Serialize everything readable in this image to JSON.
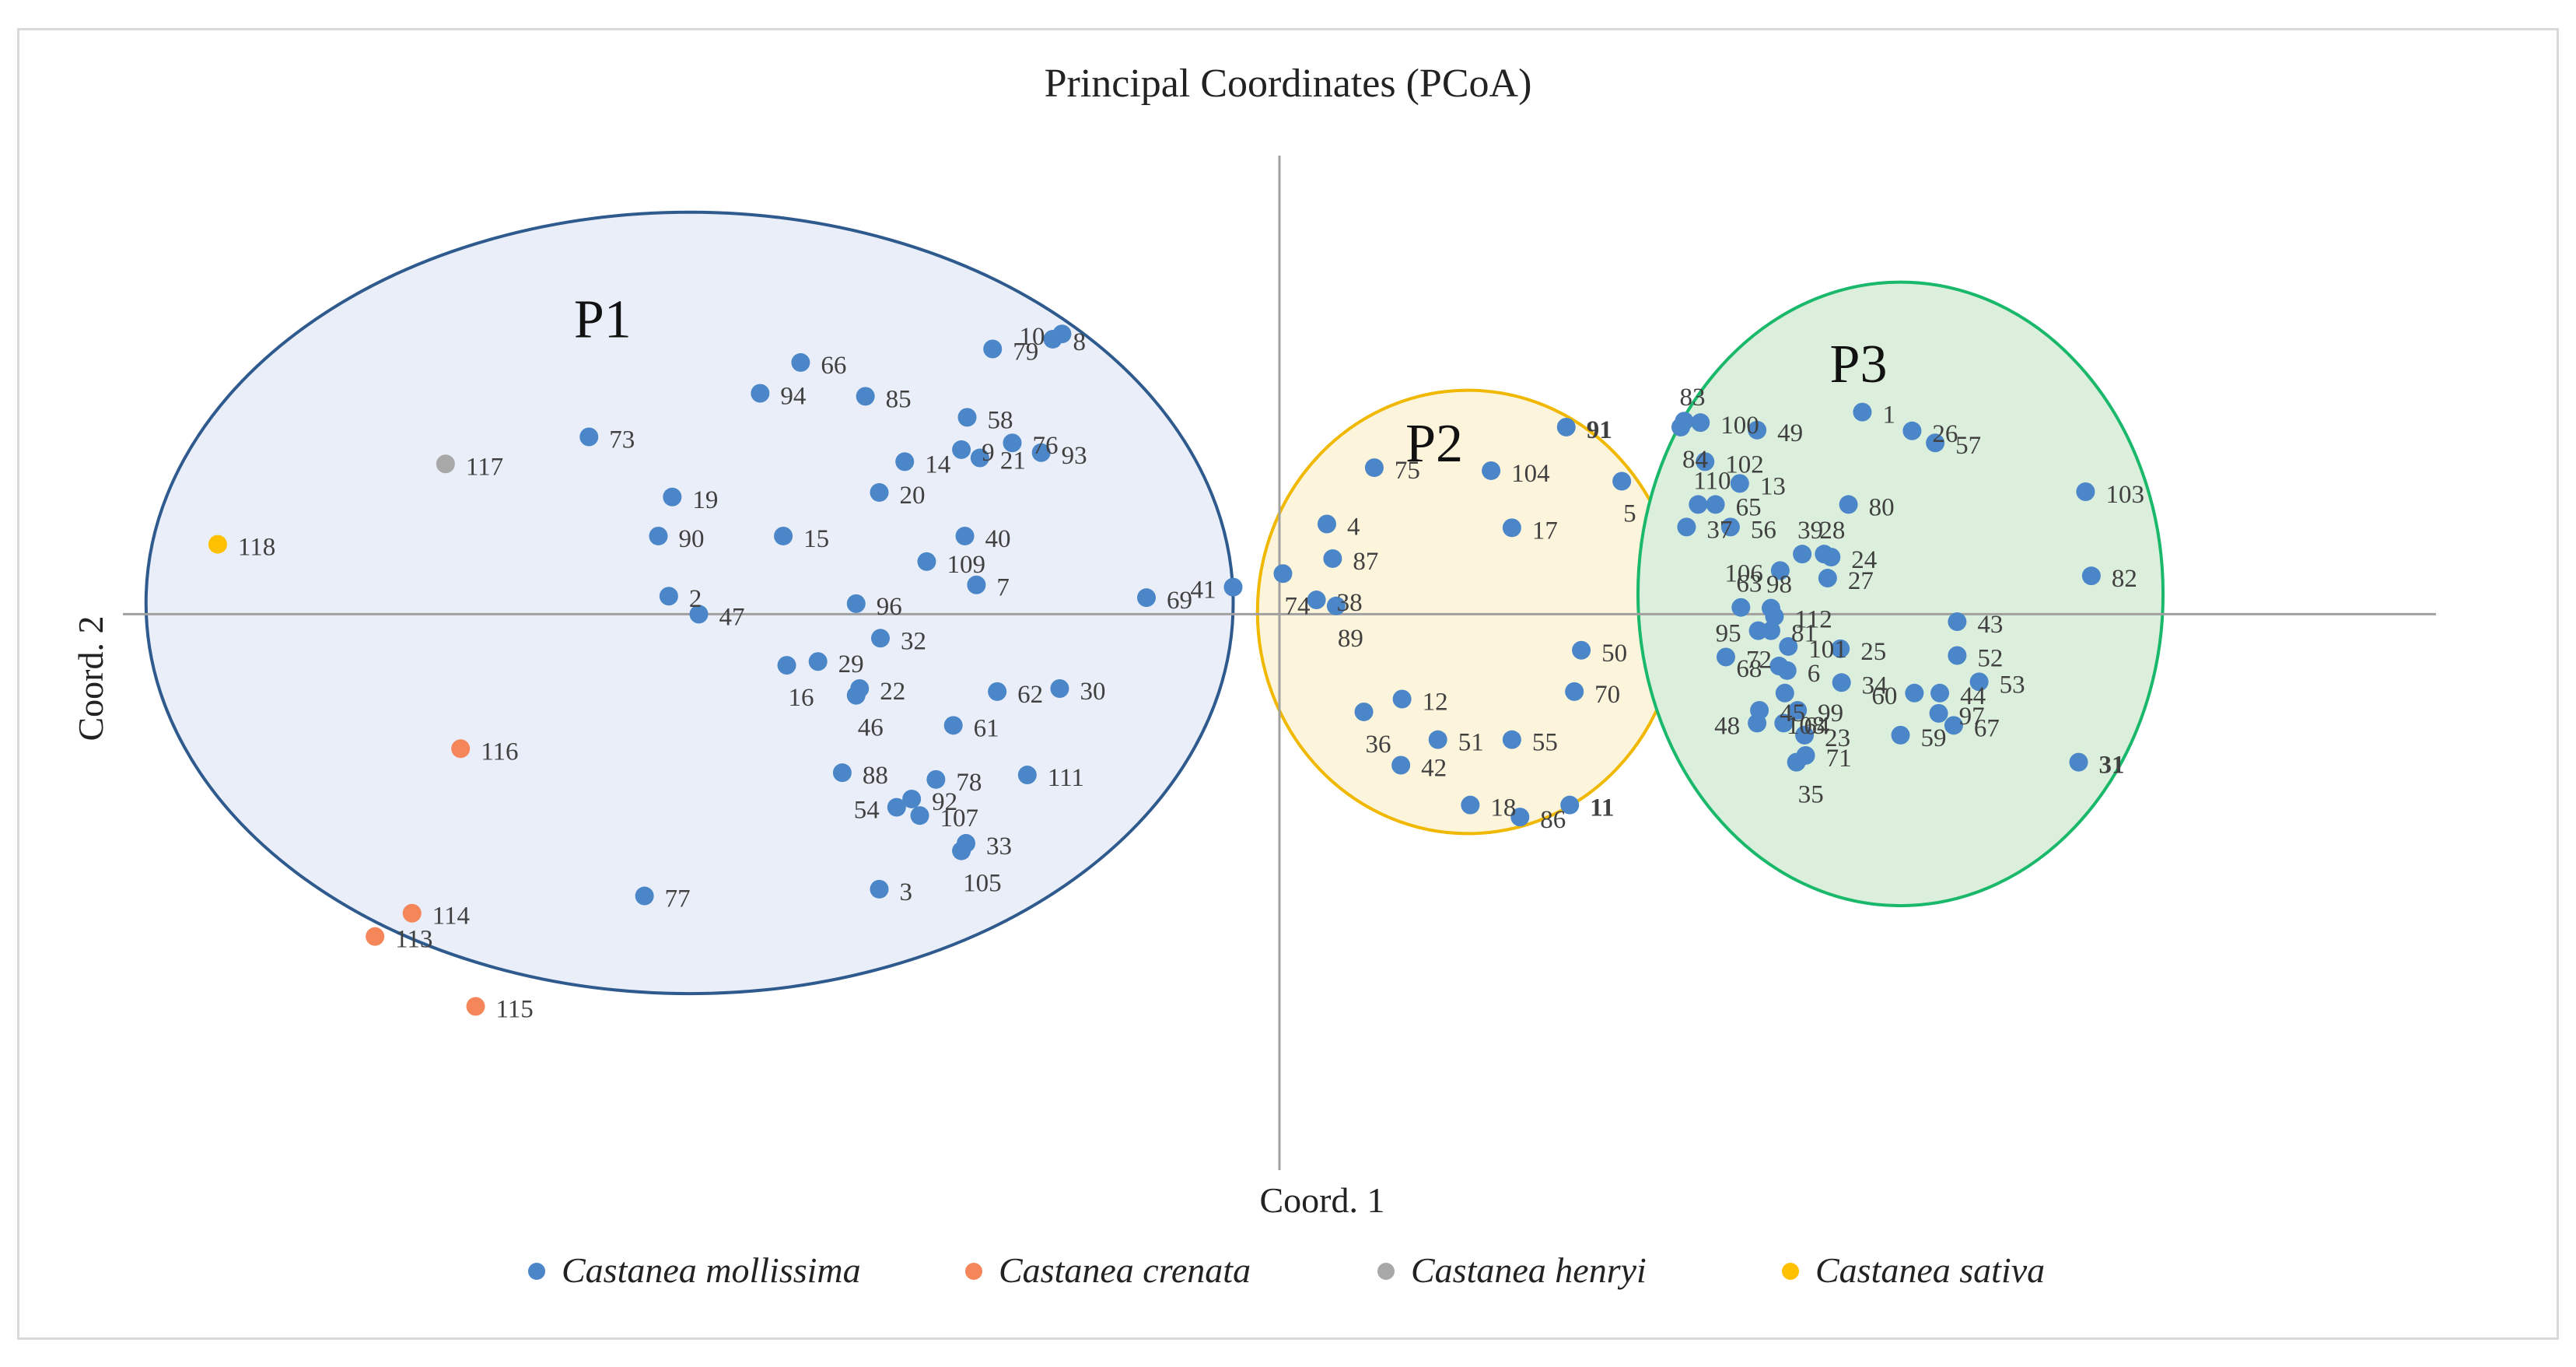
{
  "colors": {
    "mollissima": "#4a86c8",
    "crenata": "#f4865a",
    "henryi": "#a8a8a8",
    "sativa": "#ffc000",
    "axis": "#a0a0a0",
    "label": "#404040",
    "p1_stroke": "#2e5a8e",
    "p1_fill": "#e9eef8",
    "p2_stroke": "#f0b800",
    "p2_fill": "#fdf4dc",
    "p3_stroke": "#19b86a",
    "p3_fill": "#dcefdc"
  },
  "chart_data": {
    "type": "scatter",
    "title": "Principal Coordinates (PCoA)",
    "xlabel": "Coord. 1",
    "ylabel": "Coord. 2",
    "xlim": [
      -1.0,
      1.0
    ],
    "ylim": [
      -0.74,
      0.6
    ],
    "axes_cross_at": [
      0,
      0
    ],
    "grid": false,
    "legend_position": "bottom",
    "legend": [
      {
        "key": "mollissima",
        "label": "Castanea mollissima"
      },
      {
        "key": "crenata",
        "label": "Castanea crenata"
      },
      {
        "key": "henryi",
        "label": "Castanea henryi"
      },
      {
        "key": "sativa",
        "label": "Castanea sativa"
      }
    ],
    "clusters": [
      {
        "name": "P1",
        "center": [
          -0.51,
          0.015
        ],
        "radius": [
          0.47,
          0.52
        ],
        "style": "p1"
      },
      {
        "name": "P2",
        "center": [
          0.163,
          0.003
        ],
        "radius": [
          0.182,
          0.295
        ],
        "style": "p2"
      },
      {
        "name": "P3",
        "center": [
          0.537,
          0.027
        ],
        "radius": [
          0.227,
          0.415
        ],
        "style": "p3"
      }
    ],
    "points": [
      {
        "id": "10",
        "x": -0.188,
        "y": 0.373,
        "s": "mollissima",
        "lp": "l",
        "bold": false
      },
      {
        "id": "8",
        "x": -0.196,
        "y": 0.366,
        "s": "mollissima",
        "lp": "r",
        "bold": false
      },
      {
        "id": "79",
        "x": -0.248,
        "y": 0.353,
        "s": "mollissima",
        "lp": "r",
        "bold": false
      },
      {
        "id": "66",
        "x": -0.414,
        "y": 0.335,
        "s": "mollissima",
        "lp": "r",
        "bold": false
      },
      {
        "id": "94",
        "x": -0.449,
        "y": 0.294,
        "s": "mollissima",
        "lp": "r",
        "bold": false
      },
      {
        "id": "85",
        "x": -0.358,
        "y": 0.29,
        "s": "mollissima",
        "lp": "r",
        "bold": false
      },
      {
        "id": "58",
        "x": -0.27,
        "y": 0.262,
        "s": "mollissima",
        "lp": "r",
        "bold": false
      },
      {
        "id": "73",
        "x": -0.597,
        "y": 0.236,
        "s": "mollissima",
        "lp": "r",
        "bold": false
      },
      {
        "id": "76",
        "x": -0.231,
        "y": 0.228,
        "s": "mollissima",
        "lp": "r",
        "bold": false
      },
      {
        "id": "9",
        "x": -0.275,
        "y": 0.219,
        "s": "mollissima",
        "lp": "r",
        "bold": false
      },
      {
        "id": "93",
        "x": -0.206,
        "y": 0.215,
        "s": "mollissima",
        "lp": "r",
        "bold": false
      },
      {
        "id": "21",
        "x": -0.259,
        "y": 0.208,
        "s": "mollissima",
        "lp": "r",
        "bold": false
      },
      {
        "id": "14",
        "x": -0.324,
        "y": 0.203,
        "s": "mollissima",
        "lp": "r",
        "bold": false
      },
      {
        "id": "20",
        "x": -0.346,
        "y": 0.162,
        "s": "mollissima",
        "lp": "r",
        "bold": false
      },
      {
        "id": "19",
        "x": -0.525,
        "y": 0.156,
        "s": "mollissima",
        "lp": "r",
        "bold": false
      },
      {
        "id": "90",
        "x": -0.537,
        "y": 0.104,
        "s": "mollissima",
        "lp": "r",
        "bold": false
      },
      {
        "id": "15",
        "x": -0.429,
        "y": 0.104,
        "s": "mollissima",
        "lp": "r",
        "bold": false
      },
      {
        "id": "40",
        "x": -0.272,
        "y": 0.104,
        "s": "mollissima",
        "lp": "r",
        "bold": false
      },
      {
        "id": "109",
        "x": -0.305,
        "y": 0.07,
        "s": "mollissima",
        "lp": "r",
        "bold": false
      },
      {
        "id": "7",
        "x": -0.262,
        "y": 0.039,
        "s": "mollissima",
        "lp": "r",
        "bold": false
      },
      {
        "id": "41",
        "x": -0.04,
        "y": 0.036,
        "s": "mollissima",
        "lp": "l",
        "bold": false
      },
      {
        "id": "69",
        "x": -0.115,
        "y": 0.022,
        "s": "mollissima",
        "lp": "r",
        "bold": false
      },
      {
        "id": "2",
        "x": -0.528,
        "y": 0.024,
        "s": "mollissima",
        "lp": "r",
        "bold": false
      },
      {
        "id": "96",
        "x": -0.366,
        "y": 0.014,
        "s": "mollissima",
        "lp": "r",
        "bold": false
      },
      {
        "id": "47",
        "x": -0.502,
        "y": 0.0,
        "s": "mollissima",
        "lp": "r",
        "bold": false
      },
      {
        "id": "32",
        "x": -0.345,
        "y": -0.032,
        "s": "mollissima",
        "lp": "r",
        "bold": false
      },
      {
        "id": "16",
        "x": -0.426,
        "y": -0.068,
        "s": "mollissima",
        "lp": "b",
        "bold": false
      },
      {
        "id": "29",
        "x": -0.399,
        "y": -0.063,
        "s": "mollissima",
        "lp": "r",
        "bold": false
      },
      {
        "id": "22",
        "x": -0.363,
        "y": -0.099,
        "s": "mollissima",
        "lp": "r",
        "bold": false
      },
      {
        "id": "46",
        "x": -0.366,
        "y": -0.108,
        "s": "mollissima",
        "lp": "b",
        "bold": false
      },
      {
        "id": "62",
        "x": -0.244,
        "y": -0.103,
        "s": "mollissima",
        "lp": "r",
        "bold": false
      },
      {
        "id": "30",
        "x": -0.19,
        "y": -0.099,
        "s": "mollissima",
        "lp": "r",
        "bold": false
      },
      {
        "id": "61",
        "x": -0.282,
        "y": -0.148,
        "s": "mollissima",
        "lp": "r",
        "bold": false
      },
      {
        "id": "88",
        "x": -0.378,
        "y": -0.211,
        "s": "mollissima",
        "lp": "r",
        "bold": false
      },
      {
        "id": "78",
        "x": -0.297,
        "y": -0.22,
        "s": "mollissima",
        "lp": "r",
        "bold": false
      },
      {
        "id": "111",
        "x": -0.218,
        "y": -0.214,
        "s": "mollissima",
        "lp": "r",
        "bold": false
      },
      {
        "id": "54",
        "x": -0.331,
        "y": -0.257,
        "s": "mollissima",
        "lp": "l",
        "bold": false
      },
      {
        "id": "92",
        "x": -0.318,
        "y": -0.246,
        "s": "mollissima",
        "lp": "r",
        "bold": false
      },
      {
        "id": "107",
        "x": -0.311,
        "y": -0.268,
        "s": "mollissima",
        "lp": "r",
        "bold": false
      },
      {
        "id": "33",
        "x": -0.271,
        "y": -0.305,
        "s": "mollissima",
        "lp": "r",
        "bold": false
      },
      {
        "id": "105",
        "x": -0.275,
        "y": -0.315,
        "s": "mollissima",
        "lp": "b",
        "bold": false
      },
      {
        "id": "3",
        "x": -0.346,
        "y": -0.366,
        "s": "mollissima",
        "lp": "r",
        "bold": false
      },
      {
        "id": "77",
        "x": -0.549,
        "y": -0.375,
        "s": "mollissima",
        "lp": "r",
        "bold": false
      },
      {
        "id": "117",
        "x": -0.721,
        "y": 0.2,
        "s": "henryi",
        "lp": "r",
        "bold": false
      },
      {
        "id": "118",
        "x": -0.918,
        "y": 0.093,
        "s": "sativa",
        "lp": "r",
        "bold": false
      },
      {
        "id": "116",
        "x": -0.708,
        "y": -0.179,
        "s": "crenata",
        "lp": "r",
        "bold": false
      },
      {
        "id": "114",
        "x": -0.75,
        "y": -0.398,
        "s": "crenata",
        "lp": "r",
        "bold": false
      },
      {
        "id": "113",
        "x": -0.782,
        "y": -0.429,
        "s": "crenata",
        "lp": "r",
        "bold": false
      },
      {
        "id": "115",
        "x": -0.695,
        "y": -0.522,
        "s": "crenata",
        "lp": "r",
        "bold": false
      },
      {
        "id": "91",
        "x": 0.248,
        "y": 0.249,
        "s": "mollissima",
        "lp": "r",
        "bold": true
      },
      {
        "id": "75",
        "x": 0.082,
        "y": 0.195,
        "s": "mollissima",
        "lp": "r",
        "bold": false
      },
      {
        "id": "104",
        "x": 0.183,
        "y": 0.191,
        "s": "mollissima",
        "lp": "r",
        "bold": false
      },
      {
        "id": "5",
        "x": 0.296,
        "y": 0.177,
        "s": "mollissima",
        "lp": "b",
        "bold": false
      },
      {
        "id": "4",
        "x": 0.041,
        "y": 0.12,
        "s": "mollissima",
        "lp": "r",
        "bold": false
      },
      {
        "id": "17",
        "x": 0.201,
        "y": 0.115,
        "s": "mollissima",
        "lp": "r",
        "bold": false
      },
      {
        "id": "87",
        "x": 0.046,
        "y": 0.074,
        "s": "mollissima",
        "lp": "r",
        "bold": false
      },
      {
        "id": "74",
        "x": 0.003,
        "y": 0.054,
        "s": "mollissima",
        "lp": "b",
        "bold": false
      },
      {
        "id": "38",
        "x": 0.032,
        "y": 0.019,
        "s": "mollissima",
        "lp": "r",
        "bold": false
      },
      {
        "id": "89",
        "x": 0.049,
        "y": 0.011,
        "s": "mollissima",
        "lp": "b",
        "bold": false
      },
      {
        "id": "50",
        "x": 0.261,
        "y": -0.048,
        "s": "mollissima",
        "lp": "r",
        "bold": false
      },
      {
        "id": "70",
        "x": 0.255,
        "y": -0.103,
        "s": "mollissima",
        "lp": "r",
        "bold": false
      },
      {
        "id": "12",
        "x": 0.106,
        "y": -0.113,
        "s": "mollissima",
        "lp": "r",
        "bold": false
      },
      {
        "id": "36",
        "x": 0.073,
        "y": -0.13,
        "s": "mollissima",
        "lp": "b",
        "bold": false
      },
      {
        "id": "51",
        "x": 0.137,
        "y": -0.167,
        "s": "mollissima",
        "lp": "r",
        "bold": false
      },
      {
        "id": "55",
        "x": 0.201,
        "y": -0.167,
        "s": "mollissima",
        "lp": "r",
        "bold": false
      },
      {
        "id": "42",
        "x": 0.105,
        "y": -0.201,
        "s": "mollissima",
        "lp": "r",
        "bold": false
      },
      {
        "id": "18",
        "x": 0.165,
        "y": -0.254,
        "s": "mollissima",
        "lp": "r",
        "bold": false
      },
      {
        "id": "11",
        "x": 0.251,
        "y": -0.254,
        "s": "mollissima",
        "lp": "r",
        "bold": true
      },
      {
        "id": "86",
        "x": 0.208,
        "y": -0.27,
        "s": "mollissima",
        "lp": "r",
        "bold": false
      },
      {
        "id": "83",
        "x": 0.35,
        "y": 0.257,
        "s": "mollissima",
        "lp": "t",
        "bold": false
      },
      {
        "id": "84",
        "x": 0.347,
        "y": 0.249,
        "s": "mollissima",
        "lp": "b",
        "bold": false
      },
      {
        "id": "100",
        "x": 0.364,
        "y": 0.255,
        "s": "mollissima",
        "lp": "r",
        "bold": false
      },
      {
        "id": "49",
        "x": 0.413,
        "y": 0.245,
        "s": "mollissima",
        "lp": "r",
        "bold": false
      },
      {
        "id": "1",
        "x": 0.504,
        "y": 0.269,
        "s": "mollissima",
        "lp": "r",
        "bold": false
      },
      {
        "id": "26",
        "x": 0.547,
        "y": 0.244,
        "s": "mollissima",
        "lp": "r",
        "bold": false
      },
      {
        "id": "57",
        "x": 0.567,
        "y": 0.228,
        "s": "mollissima",
        "lp": "r",
        "bold": false
      },
      {
        "id": "102",
        "x": 0.368,
        "y": 0.203,
        "s": "mollissima",
        "lp": "r",
        "bold": false
      },
      {
        "id": "13",
        "x": 0.398,
        "y": 0.174,
        "s": "mollissima",
        "lp": "r",
        "bold": false
      },
      {
        "id": "110",
        "x": 0.362,
        "y": 0.146,
        "s": "mollissima",
        "lp": "t",
        "bold": false
      },
      {
        "id": "65",
        "x": 0.377,
        "y": 0.146,
        "s": "mollissima",
        "lp": "r",
        "bold": false
      },
      {
        "id": "80",
        "x": 0.492,
        "y": 0.146,
        "s": "mollissima",
        "lp": "r",
        "bold": false
      },
      {
        "id": "103",
        "x": 0.697,
        "y": 0.163,
        "s": "mollissima",
        "lp": "r",
        "bold": false
      },
      {
        "id": "37",
        "x": 0.352,
        "y": 0.116,
        "s": "mollissima",
        "lp": "r",
        "bold": false
      },
      {
        "id": "56",
        "x": 0.39,
        "y": 0.116,
        "s": "mollissima",
        "lp": "r",
        "bold": false
      },
      {
        "id": "39",
        "x": 0.452,
        "y": 0.08,
        "s": "mollissima",
        "lp": "t",
        "bold": false
      },
      {
        "id": "28",
        "x": 0.471,
        "y": 0.08,
        "s": "mollissima",
        "lp": "t",
        "bold": false
      },
      {
        "id": "24",
        "x": 0.477,
        "y": 0.076,
        "s": "mollissima",
        "lp": "r",
        "bold": false
      },
      {
        "id": "106",
        "x": 0.433,
        "y": 0.058,
        "s": "mollissima",
        "lp": "l",
        "bold": false
      },
      {
        "id": "27",
        "x": 0.474,
        "y": 0.048,
        "s": "mollissima",
        "lp": "r",
        "bold": false
      },
      {
        "id": "82",
        "x": 0.702,
        "y": 0.051,
        "s": "mollissima",
        "lp": "r",
        "bold": false
      },
      {
        "id": "63",
        "x": 0.399,
        "y": 0.009,
        "s": "mollissima",
        "lp": "t",
        "bold": false
      },
      {
        "id": "98",
        "x": 0.425,
        "y": 0.008,
        "s": "mollissima",
        "lp": "t",
        "bold": false
      },
      {
        "id": "112",
        "x": 0.428,
        "y": -0.003,
        "s": "mollissima",
        "lp": "r",
        "bold": false
      },
      {
        "id": "43",
        "x": 0.586,
        "y": -0.01,
        "s": "mollissima",
        "lp": "r",
        "bold": false
      },
      {
        "id": "95",
        "x": 0.414,
        "y": -0.022,
        "s": "mollissima",
        "lp": "l",
        "bold": false
      },
      {
        "id": "81",
        "x": 0.425,
        "y": -0.022,
        "s": "mollissima",
        "lp": "r",
        "bold": false
      },
      {
        "id": "101",
        "x": 0.44,
        "y": -0.043,
        "s": "mollissima",
        "lp": "r",
        "bold": false
      },
      {
        "id": "25",
        "x": 0.485,
        "y": -0.046,
        "s": "mollissima",
        "lp": "r",
        "bold": false
      },
      {
        "id": "52",
        "x": 0.586,
        "y": -0.055,
        "s": "mollissima",
        "lp": "r",
        "bold": false
      },
      {
        "id": "72",
        "x": 0.386,
        "y": -0.057,
        "s": "mollissima",
        "lp": "r",
        "bold": false
      },
      {
        "id": "68",
        "x": 0.432,
        "y": -0.069,
        "s": "mollissima",
        "lp": "l",
        "bold": false
      },
      {
        "id": "6",
        "x": 0.439,
        "y": -0.075,
        "s": "mollissima",
        "lp": "r",
        "bold": false
      },
      {
        "id": "34",
        "x": 0.486,
        "y": -0.091,
        "s": "mollissima",
        "lp": "r",
        "bold": false
      },
      {
        "id": "53",
        "x": 0.605,
        "y": -0.09,
        "s": "mollissima",
        "lp": "r",
        "bold": false
      },
      {
        "id": "108",
        "x": 0.437,
        "y": -0.105,
        "s": "mollissima",
        "lp": "b",
        "bold": false
      },
      {
        "id": "60",
        "x": 0.549,
        "y": -0.105,
        "s": "mollissima",
        "lp": "l",
        "bold": false
      },
      {
        "id": "44",
        "x": 0.571,
        "y": -0.105,
        "s": "mollissima",
        "lp": "r",
        "bold": false
      },
      {
        "id": "45",
        "x": 0.415,
        "y": -0.128,
        "s": "mollissima",
        "lp": "r",
        "bold": false
      },
      {
        "id": "99",
        "x": 0.448,
        "y": -0.128,
        "s": "mollissima",
        "lp": "r",
        "bold": false
      },
      {
        "id": "97",
        "x": 0.57,
        "y": -0.132,
        "s": "mollissima",
        "lp": "r",
        "bold": false
      },
      {
        "id": "48",
        "x": 0.413,
        "y": -0.145,
        "s": "mollissima",
        "lp": "l",
        "bold": false
      },
      {
        "id": "64",
        "x": 0.436,
        "y": -0.145,
        "s": "mollissima",
        "lp": "r",
        "bold": false
      },
      {
        "id": "67",
        "x": 0.583,
        "y": -0.148,
        "s": "mollissima",
        "lp": "r",
        "bold": false
      },
      {
        "id": "23",
        "x": 0.454,
        "y": -0.161,
        "s": "mollissima",
        "lp": "r",
        "bold": false
      },
      {
        "id": "59",
        "x": 0.537,
        "y": -0.161,
        "s": "mollissima",
        "lp": "r",
        "bold": false
      },
      {
        "id": "71",
        "x": 0.455,
        "y": -0.188,
        "s": "mollissima",
        "lp": "r",
        "bold": false
      },
      {
        "id": "35",
        "x": 0.447,
        "y": -0.197,
        "s": "mollissima",
        "lp": "b",
        "bold": false
      },
      {
        "id": "31",
        "x": 0.691,
        "y": -0.197,
        "s": "mollissima",
        "lp": "r",
        "bold": true
      }
    ]
  }
}
